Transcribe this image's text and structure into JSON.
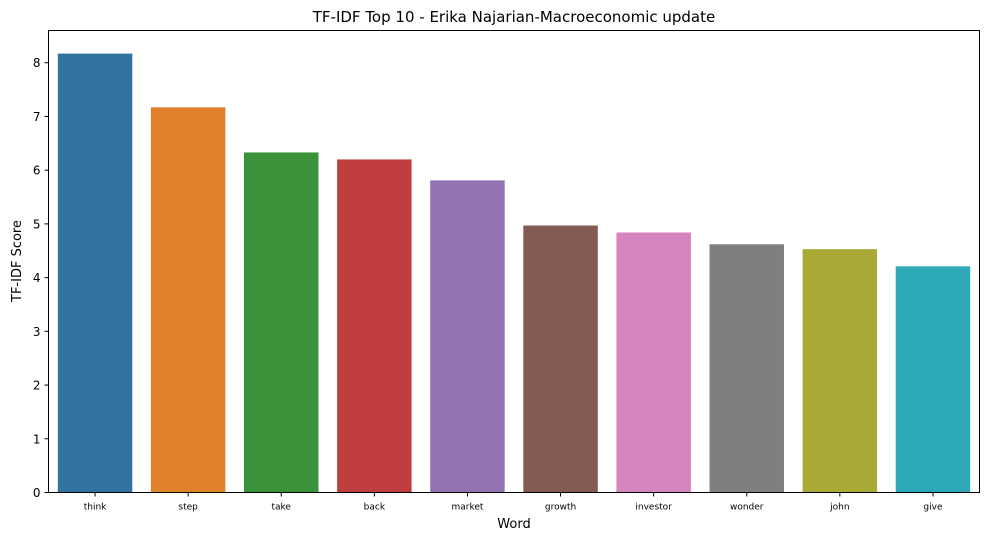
{
  "chart_data": {
    "type": "bar",
    "title": "TF-IDF Top 10 - Erika Najarian-Macroeconomic update",
    "xlabel": "Word",
    "ylabel": "TF-IDF Score",
    "categories": [
      "think",
      "step",
      "take",
      "back",
      "market",
      "growth",
      "investor",
      "wonder",
      "john",
      "give"
    ],
    "values": [
      8.17,
      7.17,
      6.33,
      6.2,
      5.81,
      4.97,
      4.84,
      4.62,
      4.53,
      4.21
    ],
    "colors": [
      "#3274a1",
      "#e1812c",
      "#3a923a",
      "#c03d3e",
      "#9372b2",
      "#845b53",
      "#d684bd",
      "#7f7f7f",
      "#a9aa35",
      "#2ea9b8"
    ],
    "ylim": [
      0,
      8.6
    ],
    "yticks": [
      "0",
      "1",
      "2",
      "3",
      "4",
      "5",
      "6",
      "7",
      "8"
    ],
    "grid": false,
    "legend": "none"
  }
}
